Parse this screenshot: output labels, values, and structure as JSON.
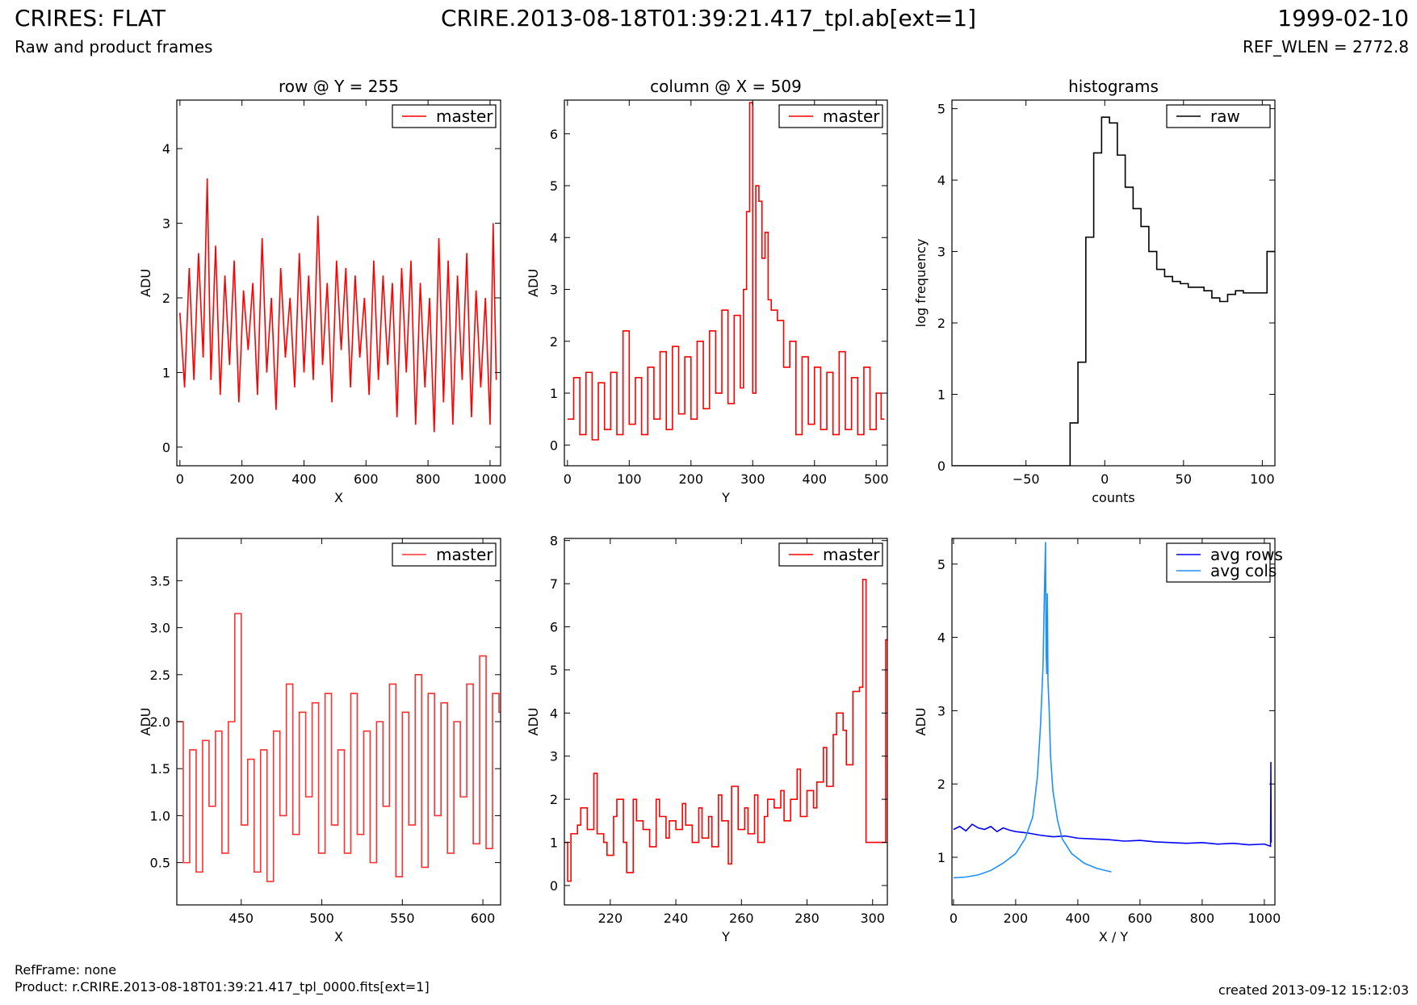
{
  "header": {
    "title": "CRIRES: FLAT",
    "subtitle": "Raw and product frames",
    "filename": "CRIRE.2013-08-18T01:39:21.417_tpl.ab[ext=1]",
    "date": "1999-02-10",
    "ref_wlen": "REF_WLEN = 2772.8"
  },
  "footer": {
    "ref_frame": "RefFrame: none",
    "product": "Product: r.CRIRE.2013-08-18T01:39:21.417_tpl_0000.fits[ext=1]",
    "created": "created 2013-09-12 15:12:03"
  },
  "chart_data": [
    {
      "id": "row",
      "type": "line",
      "title": "row @ Y = 255",
      "xlabel": "X",
      "ylabel": "ADU",
      "xlim": [
        -10,
        1034
      ],
      "ylim": [
        -0.25,
        4.65
      ],
      "xticks": [
        0,
        200,
        400,
        600,
        800,
        1000
      ],
      "yticks": [
        0,
        1,
        2,
        3,
        4
      ],
      "legend": "top-right",
      "series": [
        {
          "name": "master",
          "color": "#ff0000",
          "style": "line",
          "x": [
            0,
            15,
            30,
            45,
            60,
            75,
            88,
            100,
            115,
            130,
            145,
            160,
            175,
            190,
            205,
            220,
            235,
            250,
            265,
            280,
            295,
            310,
            325,
            340,
            355,
            370,
            385,
            400,
            415,
            430,
            445,
            460,
            475,
            490,
            505,
            520,
            535,
            550,
            565,
            580,
            595,
            610,
            625,
            640,
            655,
            670,
            685,
            700,
            715,
            730,
            745,
            760,
            775,
            790,
            805,
            820,
            835,
            850,
            865,
            880,
            895,
            910,
            925,
            940,
            955,
            970,
            985,
            1000,
            1010,
            1020
          ],
          "y": [
            1.8,
            0.8,
            2.4,
            0.9,
            2.6,
            1.2,
            3.6,
            0.9,
            2.7,
            0.7,
            2.3,
            1.1,
            2.5,
            0.6,
            2.1,
            1.3,
            2.2,
            0.7,
            2.8,
            1.0,
            2.0,
            0.5,
            2.4,
            1.2,
            2.0,
            0.8,
            2.6,
            1.0,
            2.3,
            0.9,
            3.1,
            1.1,
            2.2,
            0.6,
            2.5,
            1.3,
            2.4,
            0.8,
            2.3,
            1.2,
            2.0,
            0.7,
            2.5,
            0.9,
            2.3,
            1.1,
            2.2,
            0.4,
            2.4,
            1.0,
            2.5,
            0.3,
            2.2,
            0.8,
            2.0,
            0.2,
            2.8,
            0.6,
            2.5,
            0.3,
            2.3,
            0.9,
            2.6,
            0.4,
            2.1,
            0.8,
            2.0,
            0.3,
            3.0,
            0.9
          ]
        }
      ]
    },
    {
      "id": "column",
      "type": "line",
      "title": "column @ X = 509",
      "xlabel": "Y",
      "ylabel": "ADU",
      "xlim": [
        -5,
        518
      ],
      "ylim": [
        -0.4,
        6.65
      ],
      "xticks": [
        0,
        100,
        200,
        300,
        400,
        500
      ],
      "yticks": [
        0,
        1,
        2,
        3,
        4,
        5,
        6
      ],
      "legend": "top-right",
      "series": [
        {
          "name": "master",
          "color": "#ff0000",
          "style": "step",
          "x": [
            0,
            10,
            20,
            30,
            40,
            50,
            60,
            70,
            80,
            90,
            100,
            110,
            120,
            130,
            140,
            150,
            160,
            170,
            180,
            190,
            200,
            210,
            220,
            230,
            240,
            250,
            260,
            270,
            280,
            285,
            290,
            295,
            300,
            305,
            310,
            315,
            320,
            325,
            330,
            340,
            350,
            360,
            370,
            380,
            390,
            400,
            410,
            420,
            430,
            440,
            450,
            460,
            470,
            480,
            490,
            500,
            508
          ],
          "y": [
            0.5,
            1.3,
            0.2,
            1.4,
            0.1,
            1.2,
            0.3,
            1.4,
            0.2,
            2.2,
            0.4,
            1.3,
            0.2,
            1.5,
            0.5,
            1.8,
            0.3,
            1.9,
            0.6,
            1.7,
            0.5,
            2.0,
            0.7,
            2.2,
            1.0,
            2.6,
            0.8,
            2.5,
            1.1,
            3.0,
            4.5,
            6.6,
            1.0,
            5.0,
            4.7,
            3.6,
            4.1,
            2.8,
            2.6,
            2.4,
            1.5,
            2.0,
            0.2,
            1.7,
            0.4,
            1.5,
            0.3,
            1.4,
            0.2,
            1.8,
            0.3,
            1.3,
            0.2,
            1.5,
            0.3,
            1.0,
            0.5
          ]
        }
      ]
    },
    {
      "id": "histogram",
      "type": "line",
      "title": "histograms",
      "xlabel": "counts",
      "ylabel": "log frequency",
      "xlim": [
        -97,
        108
      ],
      "ylim": [
        0,
        5.12
      ],
      "xticks": [
        -50,
        0,
        50,
        100
      ],
      "xtick_labels": [
        "−50",
        "0",
        "50",
        "100"
      ],
      "yticks": [
        0,
        1,
        2,
        3,
        4,
        5
      ],
      "legend": "top-right",
      "series": [
        {
          "name": "raw",
          "color": "#000000",
          "style": "step",
          "x": [
            -97,
            -22,
            -17,
            -12,
            -7,
            -2,
            3,
            8,
            13,
            18,
            23,
            28,
            33,
            38,
            43,
            48,
            53,
            58,
            63,
            68,
            73,
            78,
            83,
            88,
            93,
            98,
            103,
            108
          ],
          "y": [
            0,
            0.6,
            1.45,
            3.2,
            4.38,
            4.88,
            4.8,
            4.35,
            3.9,
            3.6,
            3.35,
            3.0,
            2.75,
            2.65,
            2.58,
            2.55,
            2.5,
            2.5,
            2.45,
            2.35,
            2.3,
            2.4,
            2.45,
            2.42,
            2.42,
            2.42,
            3.0,
            3.0
          ]
        }
      ]
    },
    {
      "id": "row-zoom",
      "type": "line",
      "title": "",
      "xlabel": "X",
      "ylabel": "ADU",
      "xlim": [
        410,
        611
      ],
      "ylim": [
        0.05,
        3.95
      ],
      "xticks": [
        450,
        500,
        550,
        600
      ],
      "yticks": [
        0.5,
        1.0,
        1.5,
        2.0,
        2.5,
        3.0,
        3.5
      ],
      "ytick_labels": [
        "0.5",
        "1.0",
        "1.5",
        "2.0",
        "2.5",
        "3.0",
        "3.5"
      ],
      "legend": "top-right",
      "series": [
        {
          "name": "master",
          "color": "#ff3030",
          "style": "step",
          "x": [
            410,
            414,
            418,
            422,
            426,
            430,
            434,
            438,
            442,
            446,
            450,
            454,
            458,
            462,
            466,
            470,
            474,
            478,
            482,
            486,
            490,
            494,
            498,
            502,
            506,
            510,
            514,
            518,
            522,
            526,
            530,
            534,
            538,
            542,
            546,
            550,
            554,
            558,
            562,
            566,
            570,
            574,
            578,
            582,
            586,
            590,
            594,
            598,
            602,
            606,
            610
          ],
          "y": [
            2.0,
            0.5,
            1.7,
            0.4,
            1.8,
            1.1,
            1.9,
            0.6,
            2.0,
            3.15,
            0.9,
            1.6,
            0.4,
            1.7,
            0.3,
            1.9,
            1.0,
            2.4,
            0.8,
            2.1,
            1.2,
            2.2,
            0.6,
            2.3,
            0.9,
            1.7,
            0.6,
            2.3,
            0.8,
            1.9,
            0.5,
            2.0,
            1.1,
            2.4,
            0.35,
            2.1,
            0.9,
            2.5,
            0.45,
            2.3,
            1.0,
            2.2,
            0.6,
            2.0,
            1.2,
            2.4,
            0.7,
            2.7,
            0.65,
            2.3,
            2.1
          ]
        }
      ]
    },
    {
      "id": "column-zoom",
      "type": "line",
      "title": "",
      "xlabel": "Y",
      "ylabel": "ADU",
      "xlim": [
        206,
        304.5
      ],
      "ylim": [
        -0.45,
        8.05
      ],
      "xticks": [
        220,
        240,
        260,
        280,
        300
      ],
      "yticks": [
        0,
        1,
        2,
        3,
        4,
        5,
        6,
        7,
        8
      ],
      "legend": "top-right",
      "series": [
        {
          "name": "master",
          "color": "#ff0000",
          "style": "step",
          "x": [
            206,
            207,
            208,
            210,
            211,
            213,
            215,
            216,
            218,
            219,
            221,
            222,
            224,
            225,
            227,
            228,
            230,
            232,
            234,
            235,
            237,
            238,
            240,
            242,
            243,
            245,
            247,
            248,
            250,
            251,
            253,
            254,
            256,
            257,
            259,
            261,
            262,
            264,
            265,
            267,
            268,
            270,
            272,
            273,
            275,
            277,
            278,
            280,
            282,
            283,
            285,
            286,
            288,
            289,
            291,
            292,
            294,
            296,
            297,
            298,
            303,
            304
          ],
          "y": [
            1.0,
            0.1,
            1.2,
            1.4,
            1.8,
            1.3,
            2.6,
            1.2,
            1.0,
            0.7,
            1.6,
            2.0,
            1.0,
            0.3,
            2.0,
            1.5,
            1.3,
            0.9,
            2.0,
            1.6,
            1.1,
            1.5,
            1.3,
            1.9,
            1.4,
            1.0,
            1.8,
            1.1,
            1.6,
            0.9,
            2.1,
            1.5,
            0.5,
            2.3,
            1.3,
            1.8,
            1.2,
            2.1,
            1.0,
            1.6,
            2.0,
            1.8,
            2.2,
            1.5,
            2.0,
            2.7,
            1.6,
            2.2,
            1.8,
            2.4,
            3.2,
            2.3,
            3.5,
            4.0,
            3.6,
            2.8,
            4.5,
            4.6,
            7.1,
            1.0,
            1.0,
            5.7
          ]
        }
      ]
    },
    {
      "id": "averages",
      "type": "line",
      "title": "",
      "xlabel": "X / Y",
      "ylabel": "ADU",
      "xlim": [
        -5,
        1034
      ],
      "ylim": [
        0.35,
        5.35
      ],
      "xticks": [
        0,
        200,
        400,
        600,
        800,
        1000
      ],
      "yticks": [
        1,
        2,
        3,
        4,
        5
      ],
      "legend": "top-right",
      "series": [
        {
          "name": "avg rows",
          "color": "#0000ff",
          "style": "line",
          "x": [
            0,
            20,
            40,
            60,
            80,
            100,
            120,
            140,
            160,
            180,
            200,
            240,
            280,
            320,
            360,
            400,
            450,
            500,
            550,
            600,
            650,
            700,
            750,
            800,
            850,
            900,
            950,
            1000,
            1020,
            1021,
            1022
          ],
          "y": [
            1.38,
            1.42,
            1.36,
            1.45,
            1.4,
            1.38,
            1.42,
            1.35,
            1.4,
            1.37,
            1.35,
            1.33,
            1.3,
            1.28,
            1.29,
            1.26,
            1.25,
            1.24,
            1.22,
            1.23,
            1.21,
            1.2,
            1.19,
            1.2,
            1.18,
            1.19,
            1.17,
            1.18,
            1.15,
            2.3,
            1.2
          ]
        },
        {
          "name": "avg cols",
          "color": "#1e90ff",
          "style": "line",
          "x": [
            0,
            40,
            80,
            120,
            160,
            200,
            230,
            255,
            270,
            280,
            288,
            292,
            296,
            298,
            300,
            302,
            304,
            308,
            312,
            320,
            335,
            350,
            380,
            420,
            460,
            508
          ],
          "y": [
            0.72,
            0.73,
            0.76,
            0.82,
            0.92,
            1.05,
            1.25,
            1.55,
            2.1,
            2.8,
            3.6,
            4.5,
            5.3,
            3.8,
            3.5,
            4.6,
            3.4,
            3.0,
            2.4,
            1.9,
            1.5,
            1.25,
            1.05,
            0.92,
            0.85,
            0.8
          ]
        }
      ]
    }
  ]
}
